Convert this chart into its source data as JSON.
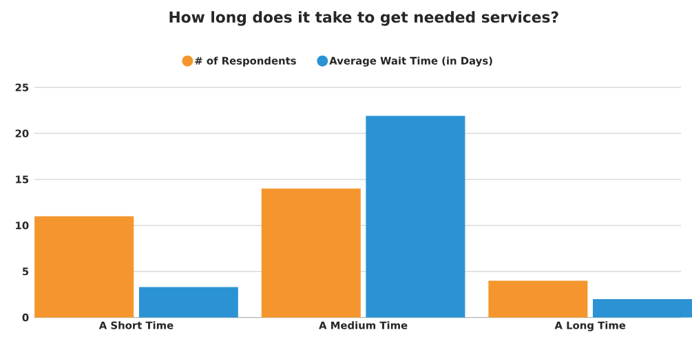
{
  "chart_data": {
    "type": "bar",
    "title": "How long does it take to get needed services?",
    "categories": [
      "A Short Time",
      "A Medium Time",
      "A Long Time"
    ],
    "series": [
      {
        "name": "# of Respondents",
        "color": "#f4962d",
        "values": [
          11,
          14,
          4
        ]
      },
      {
        "name": "Average Wait Time (in Days)",
        "color": "#2b93d3",
        "values": [
          3.3,
          21.9,
          2.0
        ]
      }
    ],
    "ylim": [
      0,
      25
    ],
    "yticks": [
      0,
      5,
      10,
      15,
      20,
      25
    ],
    "grid": "y",
    "legend": "top"
  }
}
